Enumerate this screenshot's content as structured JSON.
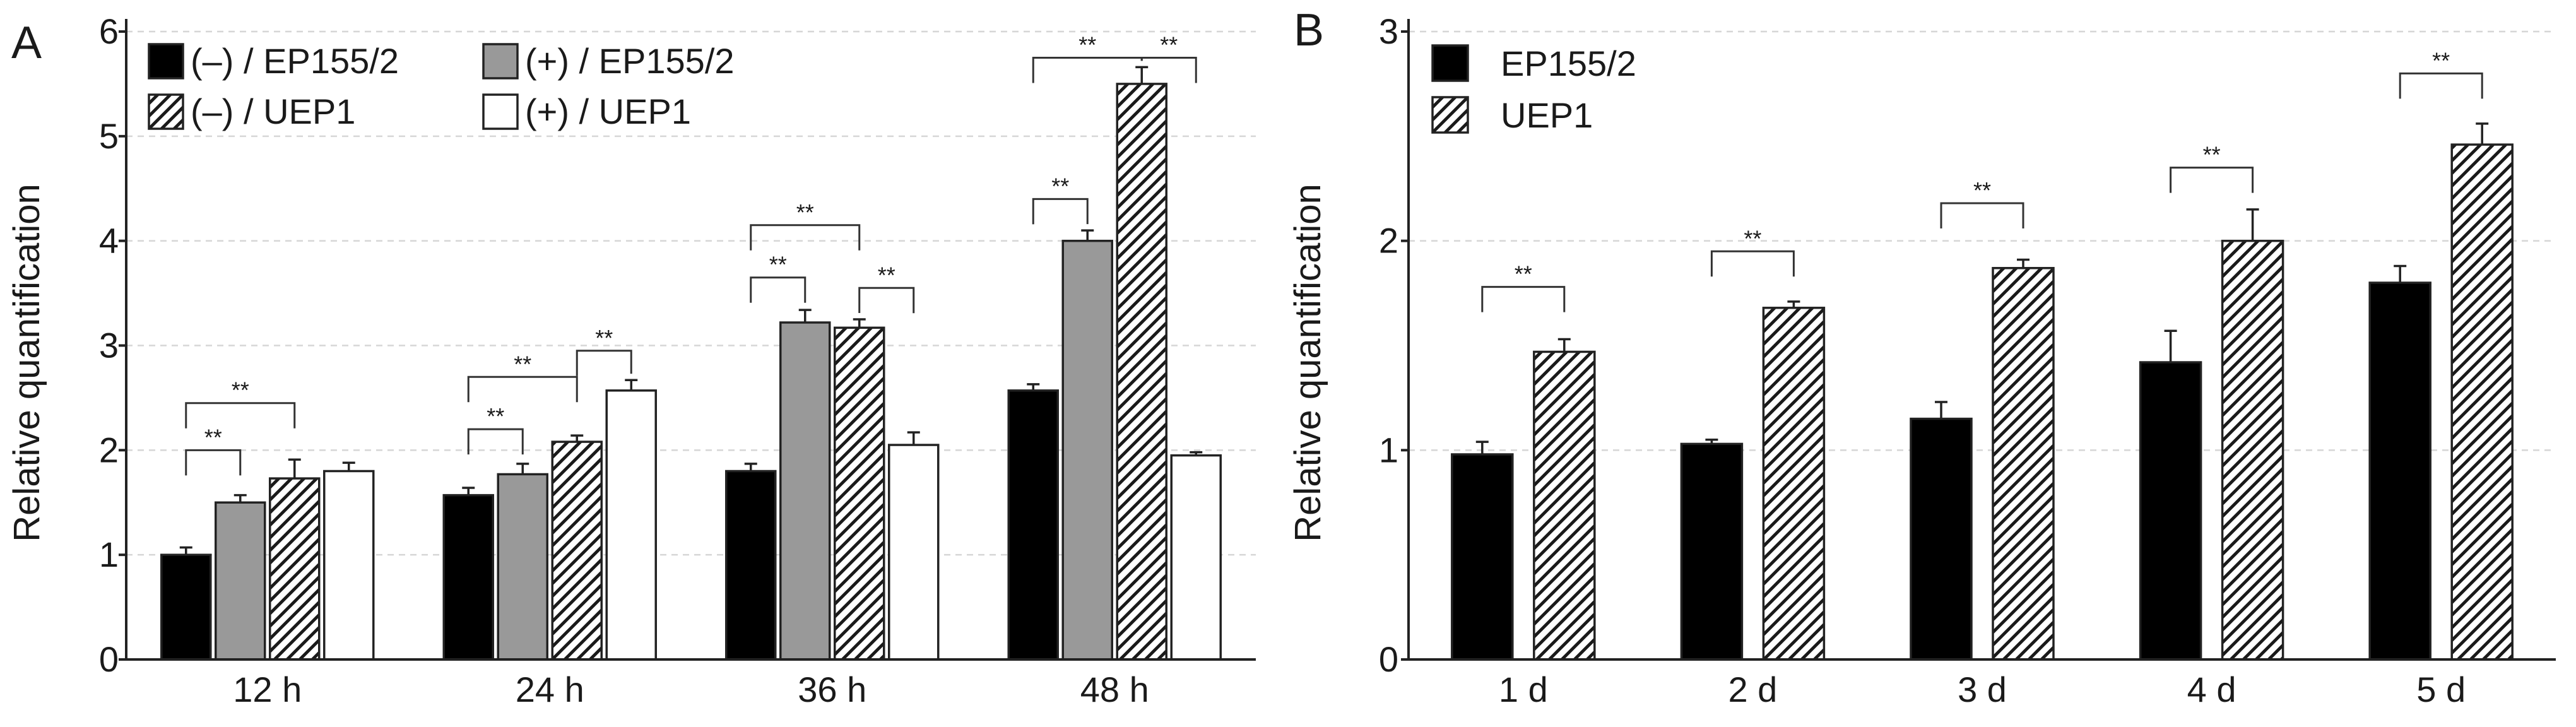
{
  "panels": {
    "a": {
      "letter": "A"
    },
    "b": {
      "letter": "B"
    }
  },
  "series_styles": {
    "neg_ep155": {
      "fill": "#000000"
    },
    "pos_ep155": {
      "fill": "#999999"
    },
    "neg_uep1": {
      "fill": "hatch"
    },
    "pos_uep1": {
      "fill": "#ffffff"
    },
    "ep155": {
      "fill": "#000000"
    },
    "uep1": {
      "fill": "hatch"
    }
  },
  "chart_data": [
    {
      "id": "a",
      "type": "bar",
      "title": "",
      "xlabel": "",
      "ylabel": "Relative quantification",
      "ylim": [
        0,
        6
      ],
      "yticks": [
        "0",
        "1",
        "2",
        "3",
        "4",
        "5",
        "6"
      ],
      "grid": true,
      "legend_position": "top-left",
      "categories": [
        "12 h",
        "24 h",
        "36 h",
        "48 h"
      ],
      "series": [
        {
          "key": "neg_ep155",
          "name": "(–) / EP155/2",
          "values": [
            1.0,
            1.57,
            1.8,
            2.57
          ],
          "errors": [
            0.07,
            0.07,
            0.07,
            0.06
          ]
        },
        {
          "key": "pos_ep155",
          "name": "(+) / EP155/2",
          "values": [
            1.5,
            1.77,
            3.22,
            4.0
          ],
          "errors": [
            0.07,
            0.1,
            0.12,
            0.1
          ]
        },
        {
          "key": "neg_uep1",
          "name": "(–) / UEP1",
          "values": [
            1.73,
            2.08,
            3.17,
            5.5
          ],
          "errors": [
            0.18,
            0.06,
            0.08,
            0.16
          ]
        },
        {
          "key": "pos_uep1",
          "name": "(+) / UEP1",
          "values": [
            1.8,
            2.57,
            2.05,
            1.95
          ],
          "errors": [
            0.08,
            0.1,
            0.12,
            0.03
          ]
        }
      ],
      "significance": [
        {
          "label": "**",
          "group": 0,
          "from": 0,
          "to": 1,
          "y": 2.0
        },
        {
          "label": "**",
          "group": 0,
          "from": 0,
          "to": 2,
          "y": 2.45
        },
        {
          "label": "**",
          "group": 1,
          "from": 0,
          "to": 1,
          "y": 2.2
        },
        {
          "label": "**",
          "group": 1,
          "from": 0,
          "to": 2,
          "y": 2.7
        },
        {
          "label": "**",
          "group": 1,
          "from": 2,
          "to": 3,
          "y": 2.95
        },
        {
          "label": "**",
          "group": 2,
          "from": 0,
          "to": 1,
          "y": 3.65
        },
        {
          "label": "**",
          "group": 2,
          "from": 0,
          "to": 2,
          "y": 4.15
        },
        {
          "label": "**",
          "group": 2,
          "from": 2,
          "to": 3,
          "y": 3.55
        },
        {
          "label": "**",
          "group": 3,
          "from": 0,
          "to": 1,
          "y": 4.4
        },
        {
          "label": "**",
          "group": 3,
          "from": 0,
          "to": 2,
          "y": 5.75
        },
        {
          "label": "**",
          "group": 3,
          "from": 2,
          "to": 3,
          "y": 5.75
        }
      ]
    },
    {
      "id": "b",
      "type": "bar",
      "title": "",
      "xlabel": "",
      "ylabel": "Relative quantification",
      "ylim": [
        0,
        3
      ],
      "yticks": [
        "0",
        "1",
        "2",
        "3"
      ],
      "grid": true,
      "legend_position": "top-left",
      "categories": [
        "1 d",
        "2 d",
        "3 d",
        "4 d",
        "5 d"
      ],
      "series": [
        {
          "key": "ep155",
          "name": "EP155/2",
          "values": [
            0.98,
            1.03,
            1.15,
            1.42,
            1.8
          ],
          "errors": [
            0.06,
            0.02,
            0.08,
            0.15,
            0.08
          ]
        },
        {
          "key": "uep1",
          "name": "UEP1",
          "values": [
            1.47,
            1.68,
            1.87,
            2.0,
            2.46
          ],
          "errors": [
            0.06,
            0.03,
            0.04,
            0.15,
            0.1
          ]
        }
      ],
      "significance": [
        {
          "label": "**",
          "group": 0,
          "from": 0,
          "to": 1,
          "y": 1.78
        },
        {
          "label": "**",
          "group": 1,
          "from": 0,
          "to": 1,
          "y": 1.95
        },
        {
          "label": "**",
          "group": 2,
          "from": 0,
          "to": 1,
          "y": 2.18
        },
        {
          "label": "**",
          "group": 3,
          "from": 0,
          "to": 1,
          "y": 2.35
        },
        {
          "label": "**",
          "group": 4,
          "from": 0,
          "to": 1,
          "y": 2.8
        }
      ]
    }
  ]
}
